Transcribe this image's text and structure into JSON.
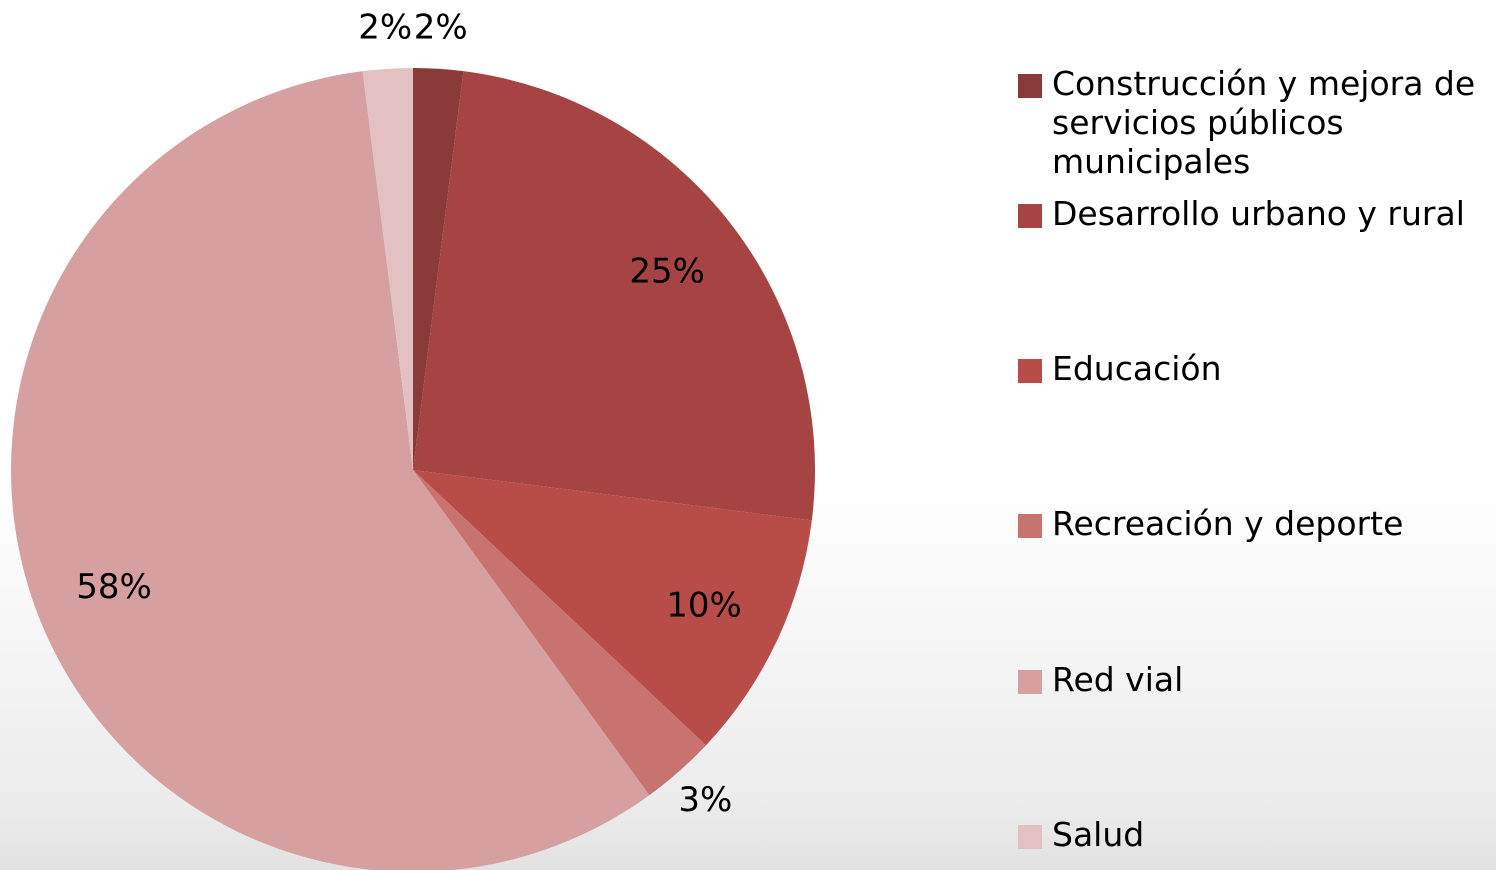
{
  "chart_data": {
    "type": "pie",
    "categories": [
      "Construcción y mejora de servicios públicos municipales",
      "Desarrollo urbano y rural",
      "Educación",
      "Recreación y deporte",
      "Red vial",
      "Salud"
    ],
    "values": [
      2,
      25,
      10,
      3,
      58,
      2
    ],
    "value_labels": [
      "2%",
      "25%",
      "10%",
      "3%",
      "58%",
      "2%"
    ],
    "colors": [
      "#8b3a3a",
      "#a54442",
      "#b84c49",
      "#c97370",
      "#d6a0a0",
      "#e3c1c2"
    ],
    "legend": "right"
  }
}
